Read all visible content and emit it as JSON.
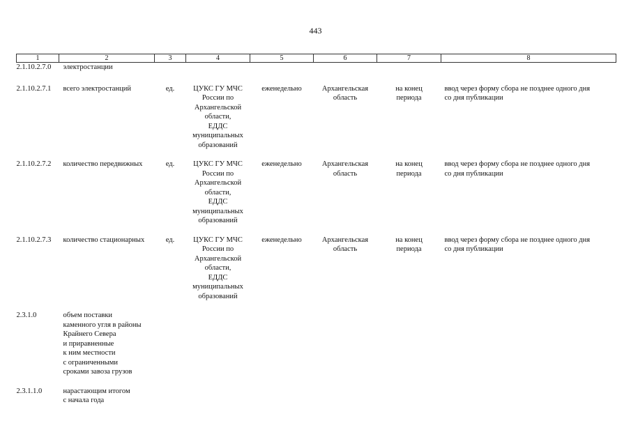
{
  "page_number": "443",
  "column_headers": [
    "1",
    "2",
    "3",
    "4",
    "5",
    "6",
    "7",
    "8"
  ],
  "rows": [
    {
      "code": "2.1.10.2.7.0",
      "name": [
        "электростанции"
      ],
      "unit": "",
      "source": [],
      "period": "",
      "territory": [],
      "time": [],
      "method": []
    },
    {
      "code": "2.1.10.2.7.1",
      "name": [
        "всего электростанций"
      ],
      "unit": "ед.",
      "source": [
        "ЦУКС ГУ МЧС",
        "России по",
        "Архангельской",
        "области,",
        "ЕДДС",
        "муниципальных",
        "образований"
      ],
      "period": "еженедельно",
      "territory": [
        "Архангельская",
        "область"
      ],
      "time": [
        "на конец",
        "периода"
      ],
      "method": [
        "ввод через форму сбора не позднее одного дня",
        "со дня публикации"
      ]
    },
    {
      "code": "2.1.10.2.7.2",
      "name": [
        "количество передвижных"
      ],
      "unit": "ед.",
      "source": [
        "ЦУКС ГУ МЧС",
        "России по",
        "Архангельской",
        "области,",
        "ЕДДС",
        "муниципальных",
        "образований"
      ],
      "period": "еженедельно",
      "territory": [
        "Архангельская",
        "область"
      ],
      "time": [
        "на конец",
        "периода"
      ],
      "method": [
        "ввод через форму сбора не позднее одного дня",
        "со дня публикации"
      ]
    },
    {
      "code": "2.1.10.2.7.3",
      "name": [
        "количество стационарных"
      ],
      "unit": "ед.",
      "source": [
        "ЦУКС ГУ МЧС",
        "России по",
        "Архангельской",
        "области,",
        "ЕДДС",
        "муниципальных",
        "образований"
      ],
      "period": "еженедельно",
      "territory": [
        "Архангельская",
        "область"
      ],
      "time": [
        "на конец",
        "периода"
      ],
      "method": [
        "ввод через форму сбора не позднее одного дня",
        "со дня публикации"
      ]
    },
    {
      "code": "2.3.1.0",
      "name": [
        "объем поставки",
        "каменного угля в районы",
        "Крайнего Севера",
        "и приравненные",
        "к ним местности",
        "с ограниченными",
        "сроками завоза грузов"
      ],
      "unit": "",
      "source": [],
      "period": "",
      "territory": [],
      "time": [],
      "method": []
    },
    {
      "code": "2.3.1.1.0",
      "name": [
        "нарастающим итогом",
        "с начала года"
      ],
      "unit": "",
      "source": [],
      "period": "",
      "territory": [],
      "time": [],
      "method": []
    }
  ]
}
